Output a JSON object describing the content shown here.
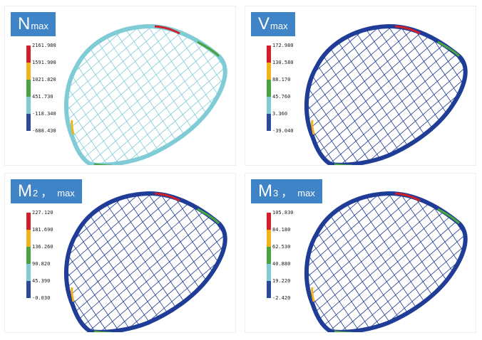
{
  "colors": {
    "title_bg": "#3f84c6",
    "legend": [
      "#d2202a",
      "#f3b21b",
      "#4aa341",
      "#7fcbd6",
      "#2a4a9c"
    ],
    "structure_dark": "#1f3c96",
    "structure_light": "#7fcbd6"
  },
  "panels": [
    {
      "id": "n",
      "title_main": "N",
      "title_sub": "max",
      "title_sep": "",
      "legend_values": [
        "2161.980",
        "1591.900",
        "1021.820",
        "451.730",
        "-118.340",
        "-688.430"
      ]
    },
    {
      "id": "v",
      "title_main": "V",
      "title_sub": "max",
      "title_sep": "",
      "legend_values": [
        "172.980",
        "130.580",
        "88.170",
        "45.760",
        "3.360",
        "-39.040"
      ]
    },
    {
      "id": "m2",
      "title_main": "M",
      "title_sub": "2",
      "title_sep": "，",
      "title_sub2": "max",
      "legend_values": [
        "227.120",
        "181.690",
        "136.260",
        "90.820",
        "45.390",
        "-0.030"
      ]
    },
    {
      "id": "m3",
      "title_main": "M",
      "title_sub": "3",
      "title_sep": "，",
      "title_sub2": "max",
      "legend_values": [
        "105.830",
        "84.180",
        "62.530",
        "40.880",
        "19.220",
        "-2.420"
      ]
    }
  ]
}
